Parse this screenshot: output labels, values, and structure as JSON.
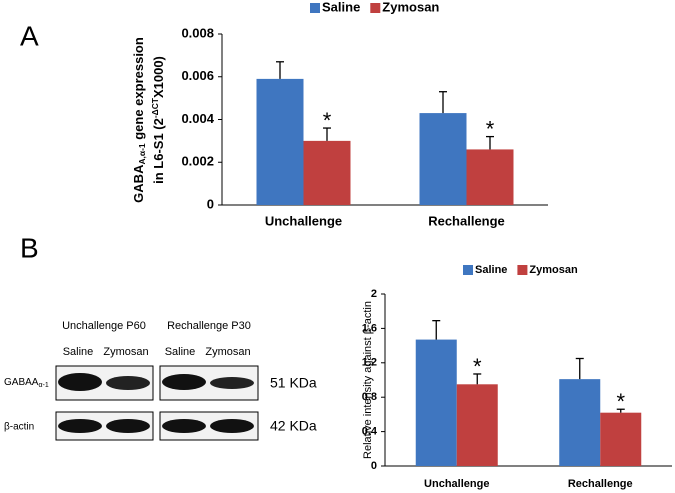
{
  "panels": [
    "A",
    "B"
  ],
  "blot": {
    "groups": [
      "Unchallenge P60",
      "Rechallenge P30"
    ],
    "lanes": [
      "Saline",
      "Zymosan",
      "Saline",
      "Zymosan"
    ],
    "rows": [
      {
        "name": "GABAA",
        "sub": "α-1",
        "size": "51 KDa"
      },
      {
        "name": "β-actin",
        "size": "42 KDa"
      }
    ]
  },
  "chart_data": [
    {
      "type": "bar",
      "y_label": [
        [
          "GABA",
          "A,α-1",
          " gene expression"
        ],
        [
          "in L6-S1 (2",
          "-ΔCT",
          "X1000)"
        ]
      ],
      "categories": [
        "Unchallenge",
        "Rechallenge"
      ],
      "series": [
        {
          "name": "Saline",
          "color": "#3f76c0",
          "values": [
            0.0059,
            0.0043
          ],
          "errors": [
            0.0008,
            0.001
          ]
        },
        {
          "name": "Zymosan",
          "color": "#c0403f",
          "values": [
            0.003,
            0.0026
          ],
          "errors": [
            0.0006,
            0.0006
          ],
          "markers": [
            "*",
            "*"
          ]
        }
      ],
      "ylim": [
        0,
        0.008
      ],
      "yticks": [
        0,
        0.002,
        0.004,
        0.006,
        0.008
      ]
    },
    {
      "type": "bar",
      "y_label": [
        [
          "Relative intensity against β-actin"
        ]
      ],
      "categories": [
        "Unchallenge",
        "Rechallenge"
      ],
      "series": [
        {
          "name": "Saline",
          "color": "#3f76c0",
          "values": [
            1.47,
            1.01
          ],
          "errors": [
            0.22,
            0.24
          ]
        },
        {
          "name": "Zymosan",
          "color": "#c0403f",
          "values": [
            0.95,
            0.62
          ],
          "errors": [
            0.12,
            0.04
          ],
          "markers": [
            "*",
            "*"
          ]
        }
      ],
      "ylim": [
        0,
        2
      ],
      "yticks": [
        0,
        0.4,
        0.8,
        1.2,
        1.6,
        2
      ]
    }
  ]
}
